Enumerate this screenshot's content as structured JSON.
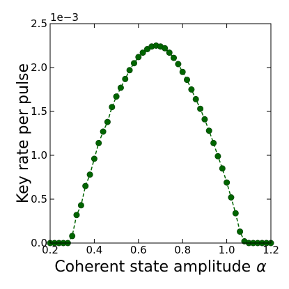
{
  "chart_data": {
    "type": "line",
    "xlabel": "Coherent state amplitude",
    "xlabel_symbol": "α",
    "ylabel": "Key rate per pulse",
    "y_multiplier": "1e−3",
    "xlim": [
      0.2,
      1.2
    ],
    "ylim": [
      0,
      2.5
    ],
    "x_ticks": [
      "0.2",
      "0.4",
      "0.6",
      "0.8",
      "1.0",
      "1.2"
    ],
    "y_ticks": [
      "0.0",
      "0.5",
      "1.0",
      "1.5",
      "2.0",
      "2.5"
    ],
    "grid": false,
    "legend": "none",
    "line_style": "dashed",
    "color": "#006400",
    "series": [
      {
        "x": [
          0.2,
          0.22,
          0.24,
          0.26,
          0.28,
          0.3,
          0.32,
          0.34,
          0.36,
          0.38,
          0.4,
          0.42,
          0.44,
          0.46,
          0.48,
          0.5,
          0.52,
          0.54,
          0.56,
          0.58,
          0.6,
          0.62,
          0.64,
          0.66,
          0.68,
          0.7,
          0.72,
          0.74,
          0.76,
          0.78,
          0.8,
          0.82,
          0.84,
          0.86,
          0.88,
          0.9,
          0.92,
          0.94,
          0.96,
          0.98,
          1.0,
          1.02,
          1.04,
          1.06,
          1.08,
          1.1,
          1.12,
          1.14,
          1.16,
          1.18,
          1.2
        ],
        "values": [
          0.0,
          0.0,
          0.0,
          0.0,
          0.0,
          0.08,
          0.32,
          0.43,
          0.65,
          0.78,
          0.96,
          1.14,
          1.27,
          1.38,
          1.55,
          1.67,
          1.77,
          1.87,
          1.97,
          2.05,
          2.12,
          2.17,
          2.21,
          2.24,
          2.25,
          2.24,
          2.22,
          2.17,
          2.11,
          2.04,
          1.95,
          1.86,
          1.75,
          1.64,
          1.53,
          1.41,
          1.28,
          1.14,
          0.99,
          0.85,
          0.69,
          0.52,
          0.34,
          0.13,
          0.02,
          0.0,
          0.0,
          0.0,
          0.0,
          0.0,
          0.0
        ]
      }
    ]
  }
}
